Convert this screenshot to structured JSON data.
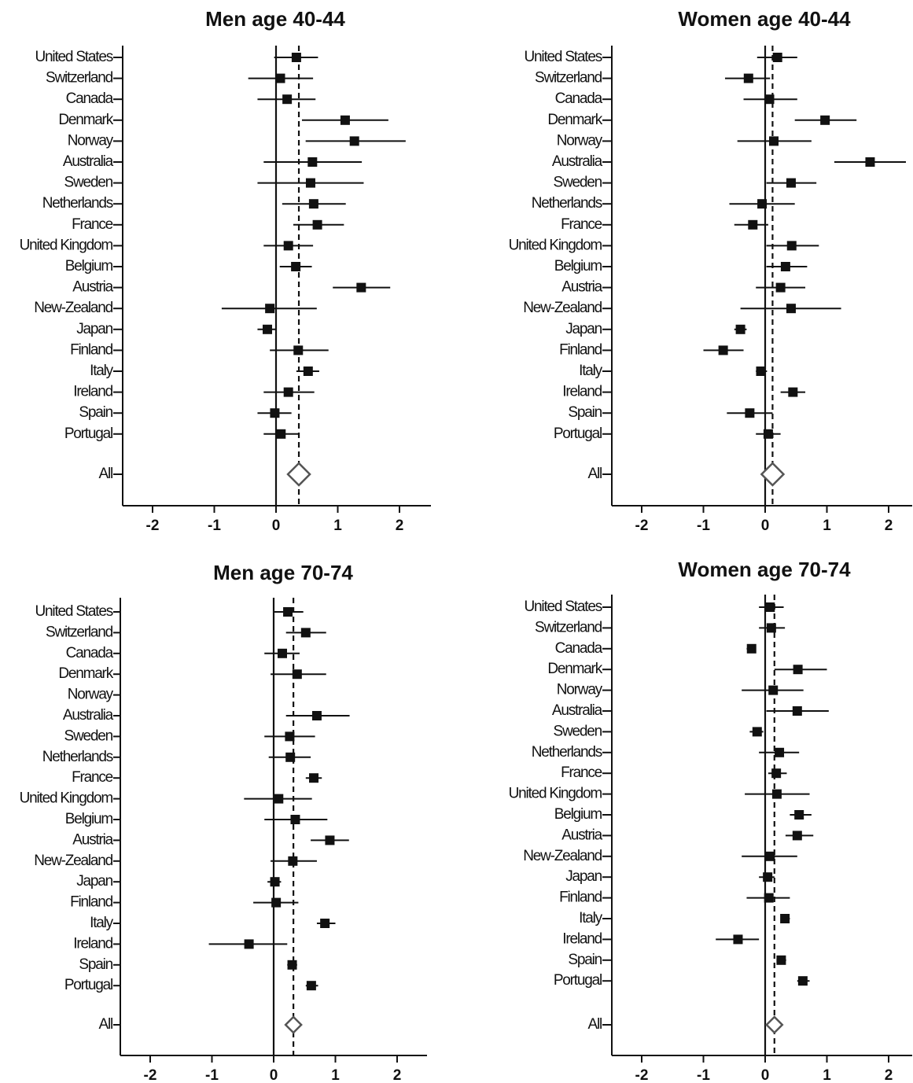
{
  "chart_data": [
    {
      "type": "forest",
      "title": "Men age 40-44",
      "xlim": [
        -2.5,
        2.5
      ],
      "xticks": [
        -2,
        -1,
        0,
        1,
        2
      ],
      "reference_line": 0,
      "pooled_line": 0.37,
      "categories": [
        "United States",
        "Switzerland",
        "Canada",
        "Denmark",
        "Norway",
        "Australia",
        "Sweden",
        "Netherlands",
        "France",
        "United Kingdom",
        "Belgium",
        "Austria",
        "New-Zealand",
        "Japan",
        "Finland",
        "Italy",
        "Ireland",
        "Spain",
        "Portugal"
      ],
      "estimates": [
        0.33,
        0.07,
        0.18,
        1.12,
        1.27,
        0.59,
        0.56,
        0.61,
        0.67,
        0.2,
        0.32,
        1.38,
        -0.1,
        -0.14,
        0.36,
        0.52,
        0.2,
        -0.02,
        0.08
      ],
      "lower": [
        -0.03,
        -0.45,
        -0.3,
        0.42,
        0.48,
        -0.2,
        -0.3,
        0.1,
        0.28,
        -0.2,
        0.06,
        0.92,
        -0.88,
        -0.3,
        -0.1,
        0.33,
        -0.2,
        -0.3,
        -0.2
      ],
      "upper": [
        0.68,
        0.6,
        0.64,
        1.82,
        2.1,
        1.39,
        1.42,
        1.13,
        1.1,
        0.6,
        0.58,
        1.85,
        0.66,
        0.0,
        0.85,
        0.7,
        0.62,
        0.25,
        0.38
      ],
      "pooled": {
        "label": "All",
        "estimate": 0.37
      }
    },
    {
      "type": "forest",
      "title": "Women age 40-44",
      "xlim": [
        -2.5,
        2.5
      ],
      "xticks": [
        -2,
        -1,
        0,
        1,
        2
      ],
      "reference_line": 0,
      "pooled_line": 0.12,
      "categories": [
        "United States",
        "Switzerland",
        "Canada",
        "Denmark",
        "Norway",
        "Australia",
        "Sweden",
        "Netherlands",
        "France",
        "United Kingdom",
        "Belgium",
        "Austria",
        "New-Zealand",
        "Japan",
        "Finland",
        "Italy",
        "Ireland",
        "Spain",
        "Portugal"
      ],
      "estimates": [
        0.2,
        -0.27,
        0.07,
        0.97,
        0.14,
        1.7,
        0.42,
        -0.05,
        -0.2,
        0.43,
        0.33,
        0.25,
        0.42,
        -0.4,
        -0.68,
        -0.07,
        0.45,
        -0.25,
        0.05
      ],
      "lower": [
        -0.13,
        -0.65,
        -0.35,
        0.48,
        -0.45,
        1.12,
        0.02,
        -0.58,
        -0.5,
        0.02,
        0.02,
        -0.15,
        -0.4,
        -0.5,
        -1.0,
        -0.15,
        0.25,
        -0.62,
        -0.15
      ],
      "upper": [
        0.52,
        0.08,
        0.52,
        1.48,
        0.75,
        2.28,
        0.83,
        0.48,
        0.05,
        0.87,
        0.68,
        0.65,
        1.23,
        -0.3,
        -0.35,
        0.03,
        0.65,
        0.12,
        0.25
      ],
      "pooled": {
        "label": "All",
        "estimate": 0.12
      }
    },
    {
      "type": "forest",
      "title": "Men age 70-74",
      "xlim": [
        -2.5,
        2.5
      ],
      "xticks": [
        -2,
        -1,
        0,
        1,
        2
      ],
      "reference_line": 0,
      "pooled_line": 0.32,
      "categories": [
        "United States",
        "Switzerland",
        "Canada",
        "Denmark",
        "Norway",
        "Australia",
        "Sweden",
        "Netherlands",
        "France",
        "United Kingdom",
        "Belgium",
        "Austria",
        "New-Zealand",
        "Japan",
        "Finland",
        "Italy",
        "Ireland",
        "Spain",
        "Portugal"
      ],
      "estimates": [
        0.23,
        0.52,
        0.14,
        0.38,
        null,
        0.7,
        0.26,
        0.27,
        0.65,
        0.08,
        0.35,
        0.91,
        0.31,
        0.02,
        0.04,
        0.83,
        -0.4,
        0.3,
        0.61
      ],
      "lower": [
        0.0,
        0.2,
        -0.15,
        -0.05,
        null,
        0.2,
        -0.15,
        -0.08,
        0.52,
        -0.48,
        -0.15,
        0.6,
        -0.05,
        -0.1,
        -0.33,
        0.7,
        -1.05,
        0.22,
        0.52
      ],
      "upper": [
        0.48,
        0.85,
        0.42,
        0.85,
        null,
        1.23,
        0.67,
        0.6,
        0.78,
        0.62,
        0.87,
        1.22,
        0.7,
        0.12,
        0.4,
        1.0,
        0.22,
        0.38,
        0.72
      ],
      "pooled": {
        "label": "All",
        "estimate": 0.32
      }
    },
    {
      "type": "forest",
      "title": "Women age 70-74",
      "xlim": [
        -2.5,
        2.5
      ],
      "xticks": [
        -2,
        -1,
        0,
        1,
        2
      ],
      "reference_line": 0,
      "pooled_line": 0.15,
      "categories": [
        "United States",
        "Switzerland",
        "Canada",
        "Denmark",
        "Norway",
        "Australia",
        "Sweden",
        "Netherlands",
        "France",
        "United Kingdom",
        "Belgium",
        "Austria",
        "New-Zealand",
        "Japan",
        "Finland",
        "Italy",
        "Ireland",
        "Spain",
        "Portugal"
      ],
      "estimates": [
        0.08,
        0.1,
        -0.22,
        0.53,
        0.13,
        0.52,
        -0.13,
        0.23,
        0.18,
        0.19,
        0.55,
        0.52,
        0.08,
        0.04,
        0.06,
        0.32,
        -0.44,
        0.26,
        0.61
      ],
      "lower": [
        -0.1,
        -0.1,
        -0.3,
        0.15,
        -0.38,
        0.02,
        -0.25,
        -0.1,
        0.05,
        -0.33,
        0.4,
        0.33,
        -0.38,
        -0.1,
        -0.3,
        0.25,
        -0.8,
        0.2,
        0.52
      ],
      "upper": [
        0.3,
        0.32,
        -0.15,
        1.0,
        0.62,
        1.03,
        -0.03,
        0.55,
        0.35,
        0.72,
        0.75,
        0.78,
        0.52,
        0.15,
        0.4,
        0.4,
        -0.1,
        0.34,
        0.72
      ],
      "pooled": {
        "label": "All",
        "estimate": 0.15
      }
    }
  ]
}
